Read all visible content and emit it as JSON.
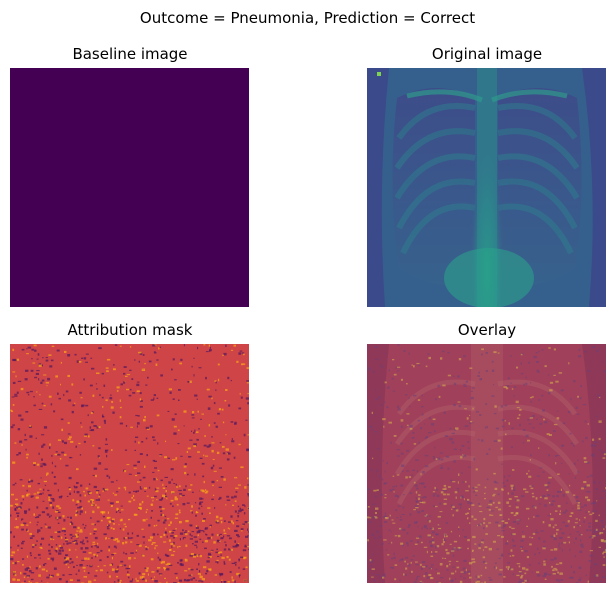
{
  "figure": {
    "suptitle": "Outcome = Pneumonia, Prediction = Correct",
    "panels": [
      {
        "title": "Baseline image",
        "colormap": "viridis",
        "fill_color": "#440154"
      },
      {
        "title": "Original image",
        "colormap": "viridis",
        "dark_color": "#3b4f8c",
        "bright_color": "#2aa58a"
      },
      {
        "title": "Attribution mask",
        "colormap": "inferno",
        "base_color": "#cf4446",
        "dark_speckle": "#5a1a5e",
        "bright_speckle": "#f8a21a"
      },
      {
        "title": "Overlay",
        "colormap": "blend",
        "base_color": "#a0405a"
      }
    ]
  }
}
